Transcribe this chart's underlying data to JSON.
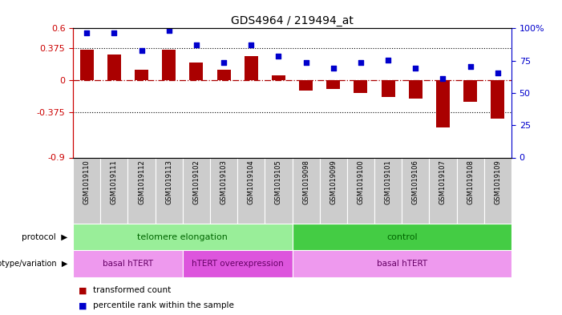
{
  "title": "GDS4964 / 219494_at",
  "samples": [
    "GSM1019110",
    "GSM1019111",
    "GSM1019112",
    "GSM1019113",
    "GSM1019102",
    "GSM1019103",
    "GSM1019104",
    "GSM1019105",
    "GSM1019098",
    "GSM1019099",
    "GSM1019100",
    "GSM1019101",
    "GSM1019106",
    "GSM1019107",
    "GSM1019108",
    "GSM1019109"
  ],
  "bar_values": [
    0.35,
    0.3,
    0.12,
    0.35,
    0.2,
    0.12,
    0.28,
    0.05,
    -0.12,
    -0.1,
    -0.15,
    -0.2,
    -0.22,
    -0.55,
    -0.25,
    -0.45
  ],
  "scatter_values": [
    0.55,
    0.55,
    0.345,
    0.575,
    0.41,
    0.2,
    0.41,
    0.28,
    0.2,
    0.14,
    0.2,
    0.23,
    0.14,
    0.02,
    0.16,
    0.08
  ],
  "ylim_left": [
    -0.9,
    0.6
  ],
  "ylim_right": [
    0,
    100
  ],
  "yticks_left": [
    -0.9,
    -0.375,
    0,
    0.375,
    0.6
  ],
  "ytick_labels_left": [
    "-0.9",
    "-0.375",
    "0",
    "0.375",
    "0.6"
  ],
  "yticks_right": [
    0,
    25,
    50,
    75,
    100
  ],
  "ytick_labels_right": [
    "0",
    "25",
    "50",
    "75",
    "100%"
  ],
  "hline_dotted": [
    0.375,
    -0.375
  ],
  "hline_dashed": 0.0,
  "bar_color": "#aa0000",
  "scatter_color": "#0000cc",
  "bg_color": "#ffffff",
  "protocol_row": [
    {
      "label": "telomere elongation",
      "start": 0,
      "end": 8,
      "color": "#99ee99"
    },
    {
      "label": "control",
      "start": 8,
      "end": 16,
      "color": "#44cc44"
    }
  ],
  "genotype_row": [
    {
      "label": "basal hTERT",
      "start": 0,
      "end": 4,
      "color": "#ee99ee"
    },
    {
      "label": "hTERT overexpression",
      "start": 4,
      "end": 8,
      "color": "#dd55dd"
    },
    {
      "label": "basal hTERT",
      "start": 8,
      "end": 16,
      "color": "#ee99ee"
    }
  ],
  "legend_items": [
    {
      "label": "transformed count",
      "color": "#aa0000"
    },
    {
      "label": "percentile rank within the sample",
      "color": "#0000cc"
    }
  ],
  "left_axis_color": "#cc0000",
  "right_axis_color": "#0000cc",
  "protocol_label": "protocol",
  "genotype_label": "genotype/variation"
}
